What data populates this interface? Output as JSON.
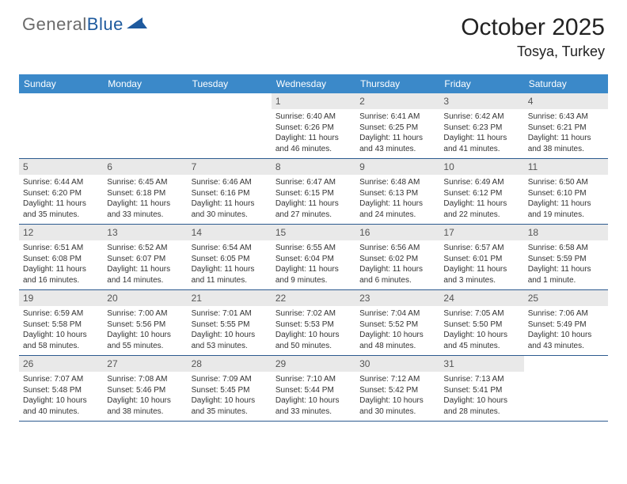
{
  "brand": {
    "part1": "General",
    "part2": "Blue"
  },
  "title": "October 2025",
  "location": "Tosya, Turkey",
  "colors": {
    "header_bg": "#3b89c9",
    "header_text": "#ffffff",
    "border": "#2c5a8f",
    "daynum_bg": "#e9e9e9",
    "text": "#333333",
    "brand_gray": "#6b6b6b",
    "brand_blue": "#1e5a9e"
  },
  "dayNames": [
    "Sunday",
    "Monday",
    "Tuesday",
    "Wednesday",
    "Thursday",
    "Friday",
    "Saturday"
  ],
  "weeks": [
    [
      {
        "n": "",
        "sr": "",
        "ss": "",
        "dl": ""
      },
      {
        "n": "",
        "sr": "",
        "ss": "",
        "dl": ""
      },
      {
        "n": "",
        "sr": "",
        "ss": "",
        "dl": ""
      },
      {
        "n": "1",
        "sr": "Sunrise: 6:40 AM",
        "ss": "Sunset: 6:26 PM",
        "dl": "Daylight: 11 hours and 46 minutes."
      },
      {
        "n": "2",
        "sr": "Sunrise: 6:41 AM",
        "ss": "Sunset: 6:25 PM",
        "dl": "Daylight: 11 hours and 43 minutes."
      },
      {
        "n": "3",
        "sr": "Sunrise: 6:42 AM",
        "ss": "Sunset: 6:23 PM",
        "dl": "Daylight: 11 hours and 41 minutes."
      },
      {
        "n": "4",
        "sr": "Sunrise: 6:43 AM",
        "ss": "Sunset: 6:21 PM",
        "dl": "Daylight: 11 hours and 38 minutes."
      }
    ],
    [
      {
        "n": "5",
        "sr": "Sunrise: 6:44 AM",
        "ss": "Sunset: 6:20 PM",
        "dl": "Daylight: 11 hours and 35 minutes."
      },
      {
        "n": "6",
        "sr": "Sunrise: 6:45 AM",
        "ss": "Sunset: 6:18 PM",
        "dl": "Daylight: 11 hours and 33 minutes."
      },
      {
        "n": "7",
        "sr": "Sunrise: 6:46 AM",
        "ss": "Sunset: 6:16 PM",
        "dl": "Daylight: 11 hours and 30 minutes."
      },
      {
        "n": "8",
        "sr": "Sunrise: 6:47 AM",
        "ss": "Sunset: 6:15 PM",
        "dl": "Daylight: 11 hours and 27 minutes."
      },
      {
        "n": "9",
        "sr": "Sunrise: 6:48 AM",
        "ss": "Sunset: 6:13 PM",
        "dl": "Daylight: 11 hours and 24 minutes."
      },
      {
        "n": "10",
        "sr": "Sunrise: 6:49 AM",
        "ss": "Sunset: 6:12 PM",
        "dl": "Daylight: 11 hours and 22 minutes."
      },
      {
        "n": "11",
        "sr": "Sunrise: 6:50 AM",
        "ss": "Sunset: 6:10 PM",
        "dl": "Daylight: 11 hours and 19 minutes."
      }
    ],
    [
      {
        "n": "12",
        "sr": "Sunrise: 6:51 AM",
        "ss": "Sunset: 6:08 PM",
        "dl": "Daylight: 11 hours and 16 minutes."
      },
      {
        "n": "13",
        "sr": "Sunrise: 6:52 AM",
        "ss": "Sunset: 6:07 PM",
        "dl": "Daylight: 11 hours and 14 minutes."
      },
      {
        "n": "14",
        "sr": "Sunrise: 6:54 AM",
        "ss": "Sunset: 6:05 PM",
        "dl": "Daylight: 11 hours and 11 minutes."
      },
      {
        "n": "15",
        "sr": "Sunrise: 6:55 AM",
        "ss": "Sunset: 6:04 PM",
        "dl": "Daylight: 11 hours and 9 minutes."
      },
      {
        "n": "16",
        "sr": "Sunrise: 6:56 AM",
        "ss": "Sunset: 6:02 PM",
        "dl": "Daylight: 11 hours and 6 minutes."
      },
      {
        "n": "17",
        "sr": "Sunrise: 6:57 AM",
        "ss": "Sunset: 6:01 PM",
        "dl": "Daylight: 11 hours and 3 minutes."
      },
      {
        "n": "18",
        "sr": "Sunrise: 6:58 AM",
        "ss": "Sunset: 5:59 PM",
        "dl": "Daylight: 11 hours and 1 minute."
      }
    ],
    [
      {
        "n": "19",
        "sr": "Sunrise: 6:59 AM",
        "ss": "Sunset: 5:58 PM",
        "dl": "Daylight: 10 hours and 58 minutes."
      },
      {
        "n": "20",
        "sr": "Sunrise: 7:00 AM",
        "ss": "Sunset: 5:56 PM",
        "dl": "Daylight: 10 hours and 55 minutes."
      },
      {
        "n": "21",
        "sr": "Sunrise: 7:01 AM",
        "ss": "Sunset: 5:55 PM",
        "dl": "Daylight: 10 hours and 53 minutes."
      },
      {
        "n": "22",
        "sr": "Sunrise: 7:02 AM",
        "ss": "Sunset: 5:53 PM",
        "dl": "Daylight: 10 hours and 50 minutes."
      },
      {
        "n": "23",
        "sr": "Sunrise: 7:04 AM",
        "ss": "Sunset: 5:52 PM",
        "dl": "Daylight: 10 hours and 48 minutes."
      },
      {
        "n": "24",
        "sr": "Sunrise: 7:05 AM",
        "ss": "Sunset: 5:50 PM",
        "dl": "Daylight: 10 hours and 45 minutes."
      },
      {
        "n": "25",
        "sr": "Sunrise: 7:06 AM",
        "ss": "Sunset: 5:49 PM",
        "dl": "Daylight: 10 hours and 43 minutes."
      }
    ],
    [
      {
        "n": "26",
        "sr": "Sunrise: 7:07 AM",
        "ss": "Sunset: 5:48 PM",
        "dl": "Daylight: 10 hours and 40 minutes."
      },
      {
        "n": "27",
        "sr": "Sunrise: 7:08 AM",
        "ss": "Sunset: 5:46 PM",
        "dl": "Daylight: 10 hours and 38 minutes."
      },
      {
        "n": "28",
        "sr": "Sunrise: 7:09 AM",
        "ss": "Sunset: 5:45 PM",
        "dl": "Daylight: 10 hours and 35 minutes."
      },
      {
        "n": "29",
        "sr": "Sunrise: 7:10 AM",
        "ss": "Sunset: 5:44 PM",
        "dl": "Daylight: 10 hours and 33 minutes."
      },
      {
        "n": "30",
        "sr": "Sunrise: 7:12 AM",
        "ss": "Sunset: 5:42 PM",
        "dl": "Daylight: 10 hours and 30 minutes."
      },
      {
        "n": "31",
        "sr": "Sunrise: 7:13 AM",
        "ss": "Sunset: 5:41 PM",
        "dl": "Daylight: 10 hours and 28 minutes."
      },
      {
        "n": "",
        "sr": "",
        "ss": "",
        "dl": ""
      }
    ]
  ]
}
